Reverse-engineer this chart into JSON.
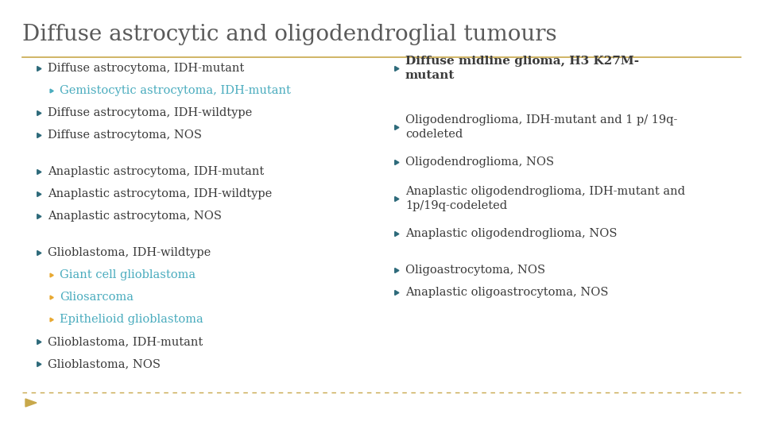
{
  "title": "Diffuse astrocytic and oligodendroglial tumours",
  "title_color": "#5a5a5a",
  "title_fontsize": 20,
  "bg_color": "#ffffff",
  "divider_color": "#c8a84b",
  "bullet_color_dark": "#2d6a7a",
  "bullet_color_light": "#e8a830",
  "bullet_color_teal": "#4aacbe",
  "text_color_normal": "#3a3a3a",
  "text_color_teal": "#4aacbe",
  "font_family": "DejaVu Serif",
  "left_items": [
    {
      "text": "Diffuse astrocytoma, IDH-mutant",
      "level": 0,
      "style": "normal"
    },
    {
      "text": "Gemistocytic astrocytoma, IDH-mutant",
      "level": 1,
      "style": "teal"
    },
    {
      "text": "Diffuse astrocytoma, IDH-wildtype",
      "level": 0,
      "style": "normal"
    },
    {
      "text": "Diffuse astrocytoma, NOS",
      "level": 0,
      "style": "normal"
    },
    {
      "text": "",
      "level": -1,
      "style": "spacer"
    },
    {
      "text": "Anaplastic astrocytoma, IDH-mutant",
      "level": 0,
      "style": "normal"
    },
    {
      "text": "Anaplastic astrocytoma, IDH-wildtype",
      "level": 0,
      "style": "normal"
    },
    {
      "text": "Anaplastic astrocytoma, NOS",
      "level": 0,
      "style": "normal"
    },
    {
      "text": "",
      "level": -1,
      "style": "spacer"
    },
    {
      "text": "Glioblastoma, IDH-wildtype",
      "level": 0,
      "style": "normal"
    },
    {
      "text": "Giant cell glioblastoma",
      "level": 1,
      "style": "teal_gold"
    },
    {
      "text": "Gliosarcoma",
      "level": 1,
      "style": "teal_gold"
    },
    {
      "text": "Epithelioid glioblastoma",
      "level": 1,
      "style": "teal_gold"
    },
    {
      "text": "Glioblastoma, IDH-mutant",
      "level": 0,
      "style": "normal"
    },
    {
      "text": "Glioblastoma, NOS",
      "level": 0,
      "style": "normal"
    }
  ],
  "right_items": [
    {
      "text": "Diffuse midline glioma, H3 K27M-\nmutant",
      "level": 0,
      "style": "bold"
    },
    {
      "text": "",
      "level": -1,
      "style": "spacer_lg"
    },
    {
      "text": "Oligodendroglioma, IDH-mutant and 1 p/ 19q-\ncodeleted",
      "level": 0,
      "style": "normal"
    },
    {
      "text": "Oligodendroglioma, NOS",
      "level": 0,
      "style": "normal"
    },
    {
      "text": "",
      "level": -1,
      "style": "spacer"
    },
    {
      "text": "Anaplastic oligodendroglioma, IDH-mutant and\n1p/19q-codeleted",
      "level": 0,
      "style": "normal"
    },
    {
      "text": "Anaplastic oligodendroglioma, NOS",
      "level": 0,
      "style": "normal"
    },
    {
      "text": "",
      "level": -1,
      "style": "spacer"
    },
    {
      "text": "Oligoastrocytoma, NOS",
      "level": 0,
      "style": "normal"
    },
    {
      "text": "Anaplastic oligoastrocytoma, NOS",
      "level": 0,
      "style": "normal"
    }
  ]
}
